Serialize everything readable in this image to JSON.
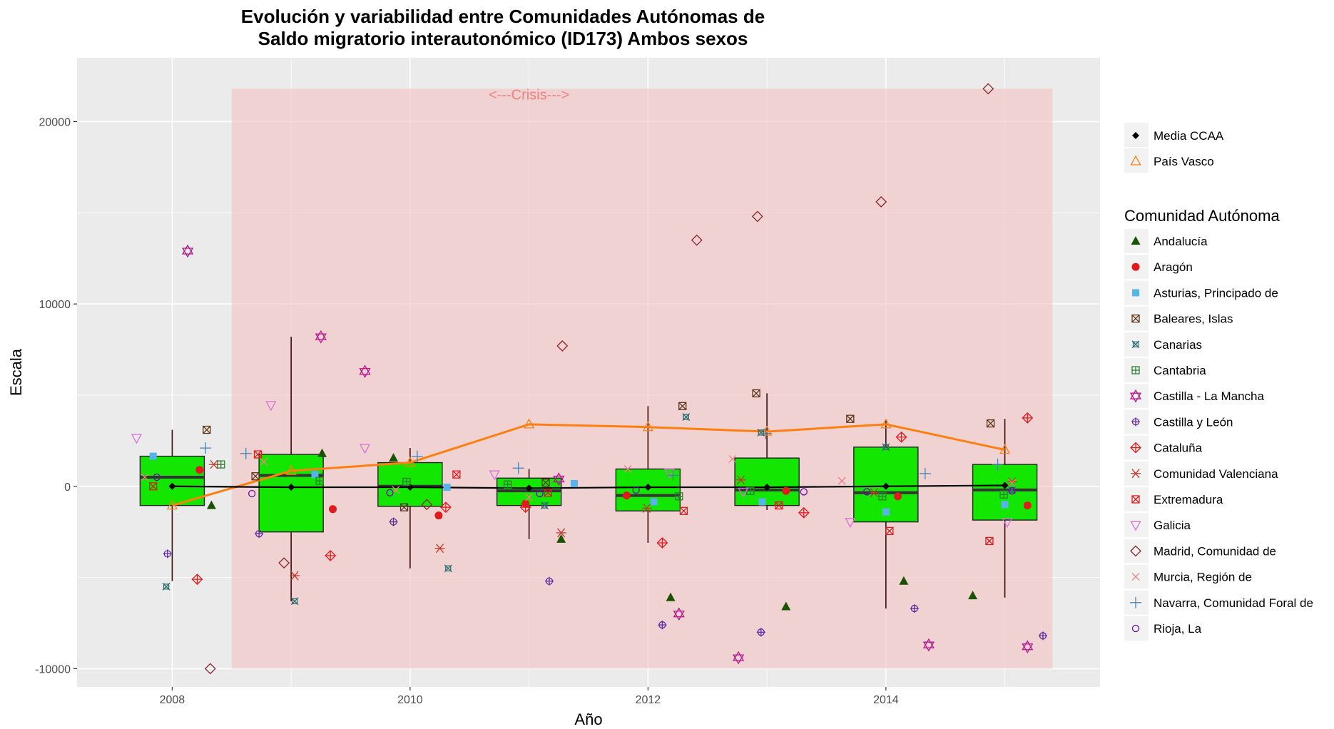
{
  "chart_data": {
    "type": "box",
    "title_line1": "Evolución y variabilidad entre Comunidades Autónomas de",
    "title_line2": "Saldo migratorio interautonómico (ID173) Ambos sexos",
    "xlabel": "Año",
    "ylabel": "Escala",
    "xlim": [
      2007.2,
      2015.8
    ],
    "ylim": [
      -11000,
      23500
    ],
    "x_ticks": [
      2008,
      2010,
      2012,
      2014
    ],
    "y_ticks": [
      -10000,
      0,
      10000,
      20000
    ],
    "crisis": {
      "label": "<---Crisis--->",
      "x_start": 2008.5,
      "x_end": 2015.4,
      "y_min": -10000,
      "y_max": 21800,
      "color": "#f4c2c2"
    },
    "box_color": "#13e600",
    "boxes": [
      {
        "year": 2008,
        "q1": -1050,
        "median": 500,
        "q3": 1650,
        "whisker_low": -5200,
        "whisker_high": 3100,
        "mean": 0
      },
      {
        "year": 2009,
        "q1": -2500,
        "median": 600,
        "q3": 1750,
        "whisker_low": -6300,
        "whisker_high": 8200,
        "mean": -50
      },
      {
        "year": 2010,
        "q1": -1100,
        "median": 0,
        "q3": 1300,
        "whisker_low": -4500,
        "whisker_high": 2100,
        "mean": -50
      },
      {
        "year": 2011,
        "q1": -1050,
        "median": -250,
        "q3": 450,
        "whisker_low": -2900,
        "whisker_high": 950,
        "mean": -100
      },
      {
        "year": 2012,
        "q1": -1350,
        "median": -500,
        "q3": 950,
        "whisker_low": -3100,
        "whisker_high": 4400,
        "mean": -50
      },
      {
        "year": 2013,
        "q1": -1050,
        "median": -200,
        "q3": 1550,
        "whisker_low": -1300,
        "whisker_high": 5100,
        "mean": -50
      },
      {
        "year": 2014,
        "q1": -1950,
        "median": -350,
        "q3": 2150,
        "whisker_low": -6700,
        "whisker_high": 3600,
        "mean": 0
      },
      {
        "year": 2015,
        "q1": -1850,
        "median": -200,
        "q3": 1200,
        "whisker_low": -6100,
        "whisker_high": 3700,
        "mean": 50
      }
    ],
    "mean_series": {
      "name": "Media CCAA",
      "color": "#000000",
      "values": [
        0,
        -50,
        -50,
        -100,
        -50,
        -50,
        0,
        50
      ]
    },
    "highlight_series": {
      "name": "País Vasco",
      "color": "#ff7f0e",
      "values": [
        -1050,
        850,
        1300,
        3400,
        3250,
        3000,
        3400,
        2000
      ]
    },
    "legend_top": [
      {
        "label": "Media CCAA",
        "symbol": "diamond-filled",
        "color": "#000000"
      },
      {
        "label": "País Vasco",
        "symbol": "triangle-open",
        "color": "#ff7f0e"
      }
    ],
    "legend_title": "Comunidad Autónoma",
    "series": [
      {
        "name": "Andalucía",
        "symbol": "triangle-filled",
        "color": "#1a5200",
        "points": [
          [
            2008.33,
            -1050
          ],
          [
            2009.26,
            1800
          ],
          [
            2009.86,
            1550
          ],
          [
            2011.27,
            -2900
          ],
          [
            2012.19,
            -6100
          ],
          [
            2013.16,
            -6600
          ],
          [
            2014.15,
            -5200
          ],
          [
            2014.73,
            -6000
          ]
        ]
      },
      {
        "name": "Aragón",
        "symbol": "circle-filled",
        "color": "#e31a1c",
        "points": [
          [
            2008.23,
            900
          ],
          [
            2009.35,
            -1250
          ],
          [
            2010.24,
            -1600
          ],
          [
            2010.97,
            -950
          ],
          [
            2011.82,
            -500
          ],
          [
            2013.16,
            -250
          ],
          [
            2014.1,
            -550
          ],
          [
            2015.19,
            -1050
          ]
        ]
      },
      {
        "name": "Asturias, Principado de",
        "symbol": "square-filled",
        "color": "#56b4e9",
        "points": [
          [
            2007.84,
            1650
          ],
          [
            2009.2,
            650
          ],
          [
            2010.31,
            -50
          ],
          [
            2011.38,
            150
          ],
          [
            2012.05,
            -850
          ],
          [
            2012.96,
            -850
          ],
          [
            2014.0,
            -1400
          ],
          [
            2015.0,
            -1000
          ]
        ]
      },
      {
        "name": "Baleares, Islas",
        "symbol": "square-x",
        "color": "#5c3317",
        "points": [
          [
            2008.29,
            3100
          ],
          [
            2008.7,
            550
          ],
          [
            2009.95,
            -1150
          ],
          [
            2011.14,
            200
          ],
          [
            2012.29,
            4400
          ],
          [
            2012.91,
            5100
          ],
          [
            2013.7,
            3700
          ],
          [
            2014.88,
            3450
          ]
        ]
      },
      {
        "name": "Canarias",
        "symbol": "square-cross-x",
        "color": "#2f6f6f",
        "points": [
          [
            2007.95,
            -5500
          ],
          [
            2009.03,
            -6300
          ],
          [
            2010.32,
            -4500
          ],
          [
            2011.13,
            -1050
          ],
          [
            2012.32,
            3800
          ],
          [
            2012.95,
            2950
          ],
          [
            2014.0,
            2150
          ],
          [
            2015.06,
            -200
          ]
        ]
      },
      {
        "name": "Cantabria",
        "symbol": "square-plus",
        "color": "#2e7d32",
        "points": [
          [
            2008.41,
            1200
          ],
          [
            2009.24,
            300
          ],
          [
            2009.97,
            250
          ],
          [
            2010.82,
            100
          ],
          [
            2012.26,
            -550
          ],
          [
            2012.86,
            -250
          ],
          [
            2013.97,
            -550
          ],
          [
            2014.99,
            -450
          ]
        ]
      },
      {
        "name": "Castilla - La Mancha",
        "symbol": "star-of-david",
        "color": "#b3168c",
        "points": [
          [
            2008.13,
            12900
          ],
          [
            2009.25,
            8200
          ],
          [
            2009.62,
            6300
          ],
          [
            2011.25,
            400
          ],
          [
            2012.26,
            -7000
          ],
          [
            2012.76,
            -9400
          ],
          [
            2014.36,
            -8700
          ],
          [
            2015.19,
            -8800
          ]
        ]
      },
      {
        "name": "Castilla y León",
        "symbol": "circle-plus",
        "color": "#5b2ca0",
        "points": [
          [
            2007.96,
            -3700
          ],
          [
            2008.73,
            -2600
          ],
          [
            2009.86,
            -1950
          ],
          [
            2011.17,
            -5200
          ],
          [
            2012.12,
            -7600
          ],
          [
            2012.95,
            -8000
          ],
          [
            2014.24,
            -6700
          ],
          [
            2015.32,
            -8200
          ]
        ]
      },
      {
        "name": "Cataluña",
        "symbol": "diamond-plus",
        "color": "#e31a1c",
        "points": [
          [
            2008.21,
            -5100
          ],
          [
            2009.33,
            -3800
          ],
          [
            2010.3,
            -1150
          ],
          [
            2010.97,
            -1150
          ],
          [
            2012.12,
            -3100
          ],
          [
            2013.31,
            -1450
          ],
          [
            2014.13,
            2700
          ],
          [
            2015.19,
            3750
          ]
        ]
      },
      {
        "name": "Comunidad Valenciana",
        "symbol": "asterisk",
        "color": "#c0392b",
        "points": [
          [
            2008.35,
            1200
          ],
          [
            2009.03,
            -4900
          ],
          [
            2010.25,
            -3400
          ],
          [
            2011.27,
            -2550
          ],
          [
            2011.99,
            -1200
          ],
          [
            2012.78,
            350
          ],
          [
            2013.9,
            -350
          ],
          [
            2015.06,
            250
          ]
        ]
      },
      {
        "name": "Extremadura",
        "symbol": "square-x",
        "color": "#e31a1c",
        "points": [
          [
            2007.84,
            0
          ],
          [
            2008.72,
            1750
          ],
          [
            2010.39,
            650
          ],
          [
            2011.16,
            -350
          ],
          [
            2012.3,
            -1350
          ],
          [
            2013.1,
            -1050
          ],
          [
            2014.03,
            -2450
          ],
          [
            2014.87,
            -3000
          ]
        ]
      },
      {
        "name": "Galicia",
        "symbol": "triangle-down-open",
        "color": "#da70d6",
        "points": [
          [
            2007.7,
            2650
          ],
          [
            2008.83,
            4450
          ],
          [
            2009.62,
            2100
          ],
          [
            2010.71,
            650
          ],
          [
            2012.18,
            750
          ],
          [
            2012.8,
            -300
          ],
          [
            2013.7,
            -1950
          ],
          [
            2015.02,
            -1950
          ]
        ]
      },
      {
        "name": "Madrid, Comunidad de",
        "symbol": "diamond-open",
        "color": "#8b2323",
        "points": [
          [
            2008.32,
            -10000
          ],
          [
            2008.94,
            -4200
          ],
          [
            2010.14,
            -1000
          ],
          [
            2011.28,
            7700
          ],
          [
            2012.41,
            13500
          ],
          [
            2012.92,
            14800
          ],
          [
            2013.96,
            15600
          ],
          [
            2014.86,
            21800
          ]
        ]
      },
      {
        "name": "Murcia, Región de",
        "symbol": "x",
        "color": "#f08080",
        "points": [
          [
            2007.77,
            500
          ],
          [
            2008.77,
            1350
          ],
          [
            2009.88,
            -200
          ],
          [
            2011.0,
            -600
          ],
          [
            2011.83,
            950
          ],
          [
            2012.71,
            1500
          ],
          [
            2013.63,
            300
          ],
          [
            2015.06,
            200
          ]
        ]
      },
      {
        "name": "Navarra, Comunidad Foral de",
        "symbol": "plus",
        "color": "#4682b4",
        "points": [
          [
            2008.28,
            2100
          ],
          [
            2008.62,
            1800
          ],
          [
            2010.06,
            1650
          ],
          [
            2010.91,
            1000
          ],
          [
            2012.21,
            600
          ],
          [
            2012.99,
            2900
          ],
          [
            2014.33,
            700
          ],
          [
            2014.94,
            1200
          ]
        ]
      },
      {
        "name": "Rioja, La",
        "symbol": "circle-open",
        "color": "#6a0dad",
        "points": [
          [
            2007.87,
            500
          ],
          [
            2008.67,
            -400
          ],
          [
            2009.83,
            -350
          ],
          [
            2011.09,
            -400
          ],
          [
            2011.9,
            -200
          ],
          [
            2013.31,
            -300
          ],
          [
            2013.84,
            -300
          ],
          [
            2015.06,
            -250
          ]
        ]
      }
    ]
  }
}
